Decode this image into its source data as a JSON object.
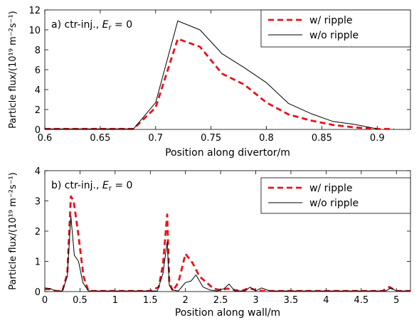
{
  "chart_data": [
    {
      "type": "line",
      "panel_label": "a) ctr-inj., ",
      "er_symbol": "E",
      "er_subscript": "r",
      "er_value": " = 0",
      "xlabel": "Position along divertor/m",
      "ylabel": "Particle flux/(10¹⁹ m⁻²s⁻¹)",
      "xlim": [
        0.6,
        0.93
      ],
      "ylim": [
        0,
        12
      ],
      "xticks": [
        "0.6",
        "0.65",
        "0.7",
        "0.75",
        "0.8",
        "0.85",
        "0.9"
      ],
      "xtick_values": [
        0.6,
        0.65,
        0.7,
        0.75,
        0.8,
        0.85,
        0.9
      ],
      "yticks": [
        "0",
        "2",
        "4",
        "6",
        "8",
        "10",
        "12"
      ],
      "ytick_values": [
        0,
        2,
        4,
        6,
        8,
        10,
        12
      ],
      "legend_position": "top-right",
      "series": [
        {
          "name": "w/ ripple",
          "color": "#e8121b",
          "style": "dashed",
          "x": [
            0.6,
            0.68,
            0.7,
            0.72,
            0.74,
            0.76,
            0.78,
            0.8,
            0.82,
            0.84,
            0.86,
            0.88,
            0.9,
            0.915
          ],
          "y": [
            0.05,
            0.05,
            2.2,
            9.1,
            8.3,
            5.6,
            4.5,
            2.7,
            1.5,
            0.9,
            0.45,
            0.2,
            0.05,
            0.05
          ]
        },
        {
          "name": "w/o ripple",
          "color": "#000000",
          "style": "solid",
          "x": [
            0.6,
            0.68,
            0.7,
            0.72,
            0.74,
            0.76,
            0.78,
            0.8,
            0.82,
            0.84,
            0.86,
            0.88,
            0.9
          ],
          "y": [
            0.05,
            0.05,
            2.7,
            10.9,
            10.0,
            7.6,
            6.2,
            4.7,
            2.6,
            1.6,
            0.8,
            0.5,
            0.05
          ]
        }
      ]
    },
    {
      "type": "line",
      "panel_label": "b) ctr-inj., ",
      "er_symbol": "E",
      "er_subscript": "r",
      "er_value": " = 0",
      "xlabel": "Position along wall/m",
      "ylabel": "Particle flux/(10¹⁹ m⁻²s⁻¹)",
      "xlim": [
        0,
        5.2
      ],
      "ylim": [
        0,
        4
      ],
      "xticks": [
        "0",
        "0.5",
        "1",
        "1.5",
        "2",
        "2.5",
        "3",
        "3.5",
        "4",
        "4.5",
        "5"
      ],
      "xtick_values": [
        0,
        0.5,
        1,
        1.5,
        2,
        2.5,
        3,
        3.5,
        4,
        4.5,
        5
      ],
      "yticks": [
        "0",
        "1",
        "2",
        "3",
        "4"
      ],
      "ytick_values": [
        0,
        1,
        2,
        3,
        4
      ],
      "legend_position": "top-right",
      "series": [
        {
          "name": "w/ ripple",
          "color": "#e8121b",
          "style": "dashed",
          "x": [
            0.0,
            0.08,
            0.15,
            0.25,
            0.32,
            0.37,
            0.41,
            0.47,
            0.55,
            0.62,
            0.7,
            1.5,
            1.62,
            1.68,
            1.74,
            1.77,
            1.82,
            1.9,
            2.0,
            2.1,
            2.2,
            2.3,
            2.4,
            2.5,
            2.6,
            2.7,
            2.8,
            2.9,
            3.0,
            3.1,
            4.8,
            4.9,
            5.0,
            5.2
          ],
          "y": [
            0.08,
            0.08,
            0.02,
            0.02,
            0.6,
            3.15,
            3.0,
            2.0,
            0.5,
            0.02,
            0.02,
            0.02,
            0.15,
            0.9,
            2.55,
            0.3,
            0.02,
            0.3,
            1.25,
            0.95,
            0.5,
            0.3,
            0.1,
            0.05,
            0.1,
            0.05,
            0.02,
            0.12,
            0.05,
            0.02,
            0.02,
            0.15,
            0.02,
            0.02
          ]
        },
        {
          "name": "w/o ripple",
          "color": "#000000",
          "style": "solid",
          "x": [
            0.0,
            0.08,
            0.15,
            0.25,
            0.32,
            0.37,
            0.42,
            0.48,
            0.54,
            0.62,
            0.7,
            1.6,
            1.68,
            1.74,
            1.77,
            1.82,
            1.9,
            2.0,
            2.08,
            2.15,
            2.25,
            2.35,
            2.45,
            2.55,
            2.62,
            2.7,
            2.85,
            2.92,
            3.0,
            3.08,
            3.2,
            4.85,
            4.92,
            5.0,
            5.2
          ],
          "y": [
            0.12,
            0.1,
            0.02,
            0.02,
            0.5,
            2.5,
            1.2,
            1.0,
            0.3,
            0.02,
            0.02,
            0.02,
            0.6,
            1.65,
            0.2,
            0.05,
            0.02,
            0.3,
            0.35,
            0.55,
            0.15,
            0.05,
            0.02,
            0.1,
            0.25,
            0.02,
            0.02,
            0.15,
            0.02,
            0.12,
            0.02,
            0.02,
            0.12,
            0.02,
            0.02
          ]
        }
      ]
    }
  ]
}
